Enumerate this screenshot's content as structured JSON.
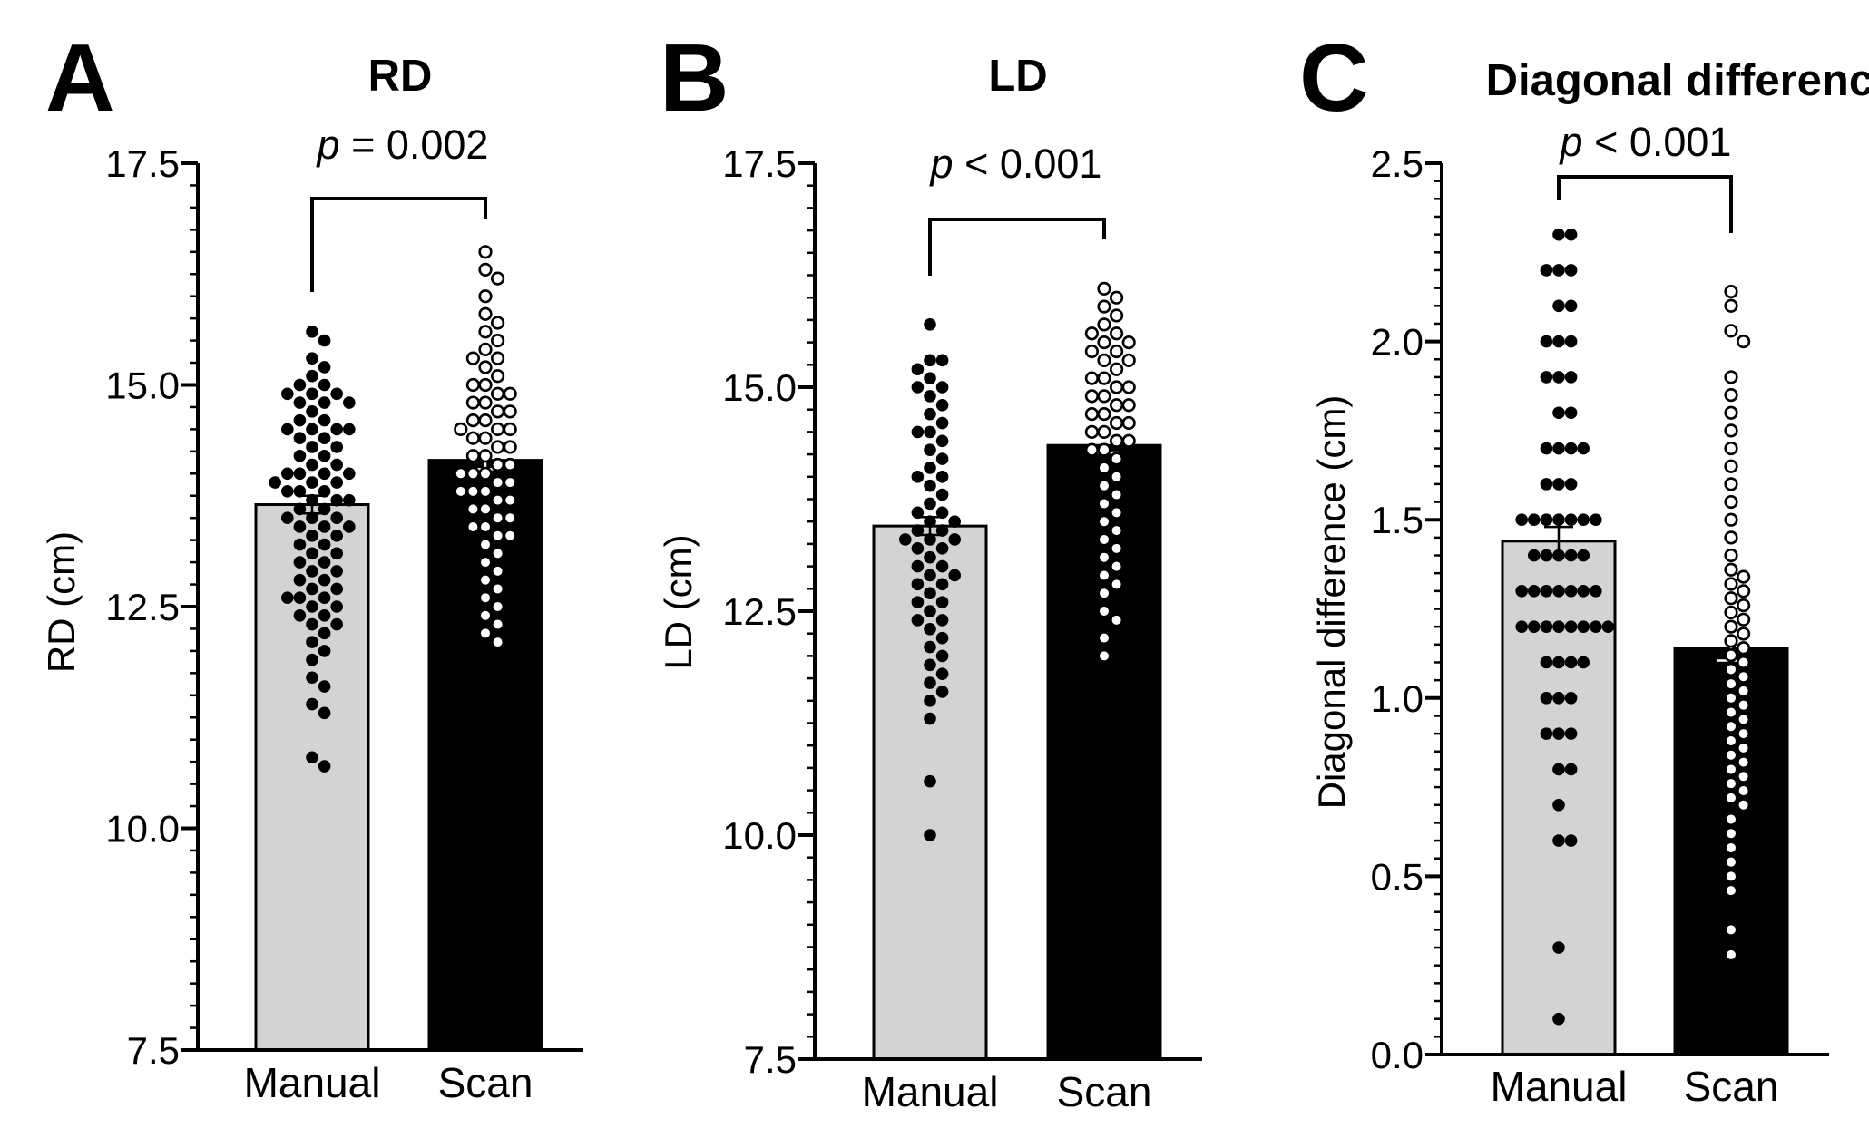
{
  "chart_data": [
    {
      "type": "bar",
      "panel": "A",
      "title": "RD",
      "ylabel": "RD (cm)",
      "xlabel": "",
      "categories": [
        "Manual",
        "Scan"
      ],
      "values": [
        13.65,
        14.15
      ],
      "sem": [
        0.1,
        0.1
      ],
      "ylim": [
        7.5,
        17.5
      ],
      "yticks": [
        "7.5",
        "10.0",
        "12.5",
        "15.0",
        "17.5"
      ],
      "pvalue": {
        "italic": "p",
        "text": " = 0.002"
      },
      "bar_colors": [
        "#d3d3d3",
        "#000000"
      ],
      "points": [
        [
          15.6,
          15.5,
          15.3,
          15.2,
          15.1,
          15.0,
          15.0,
          14.9,
          14.9,
          14.9,
          14.8,
          14.8,
          14.8,
          14.7,
          14.6,
          14.6,
          14.5,
          14.5,
          14.5,
          14.5,
          14.4,
          14.4,
          14.3,
          14.3,
          14.2,
          14.2,
          14.1,
          14.1,
          14.0,
          14.0,
          14.0,
          14.0,
          13.9,
          13.9,
          13.9,
          13.8,
          13.8,
          13.8,
          13.7,
          13.7,
          13.7,
          13.6,
          13.6,
          13.5,
          13.5,
          13.5,
          13.4,
          13.4,
          13.4,
          13.3,
          13.3,
          13.2,
          13.2,
          13.1,
          13.1,
          13.0,
          13.0,
          12.9,
          12.9,
          12.8,
          12.8,
          12.7,
          12.7,
          12.6,
          12.6,
          12.6,
          12.5,
          12.5,
          12.4,
          12.4,
          12.3,
          12.3,
          12.2,
          12.1,
          12.0,
          11.9,
          11.7,
          11.6,
          11.4,
          11.3,
          10.8,
          10.7
        ],
        [
          16.5,
          16.3,
          16.2,
          16.0,
          15.8,
          15.7,
          15.6,
          15.5,
          15.4,
          15.3,
          15.3,
          15.2,
          15.1,
          15.0,
          15.0,
          14.9,
          14.9,
          14.8,
          14.8,
          14.7,
          14.7,
          14.6,
          14.6,
          14.5,
          14.5,
          14.5,
          14.4,
          14.4,
          14.3,
          14.3,
          14.2,
          14.2,
          14.1,
          14.1,
          14.0,
          14.0,
          14.0,
          13.9,
          13.9,
          13.8,
          13.8,
          13.8,
          13.7,
          13.7,
          13.6,
          13.6,
          13.5,
          13.5,
          13.4,
          13.4,
          13.3,
          13.3,
          13.2,
          13.1,
          13.0,
          12.9,
          12.8,
          12.7,
          12.6,
          12.5,
          12.4,
          12.3,
          12.2,
          12.1
        ]
      ]
    },
    {
      "type": "bar",
      "panel": "B",
      "title": "LD",
      "ylabel": "LD (cm)",
      "xlabel": "",
      "categories": [
        "Manual",
        "Scan"
      ],
      "values": [
        13.45,
        14.35
      ],
      "sem": [
        0.1,
        0.08
      ],
      "ylim": [
        7.5,
        17.5
      ],
      "yticks": [
        "7.5",
        "10.0",
        "12.5",
        "15.0",
        "17.5"
      ],
      "pvalue": {
        "italic": "p",
        "text": " < 0.001"
      },
      "bar_colors": [
        "#d3d3d3",
        "#000000"
      ],
      "points": [
        [
          15.7,
          15.3,
          15.3,
          15.2,
          15.1,
          15.0,
          15.0,
          14.9,
          14.8,
          14.7,
          14.6,
          14.5,
          14.5,
          14.4,
          14.3,
          14.2,
          14.1,
          14.0,
          14.0,
          13.9,
          13.8,
          13.7,
          13.6,
          13.6,
          13.5,
          13.5,
          13.4,
          13.4,
          13.3,
          13.3,
          13.3,
          13.2,
          13.2,
          13.1,
          13.0,
          13.0,
          12.9,
          12.9,
          12.8,
          12.8,
          12.7,
          12.6,
          12.6,
          12.5,
          12.4,
          12.4,
          12.3,
          12.2,
          12.1,
          12.0,
          11.9,
          11.8,
          11.7,
          11.6,
          11.5,
          11.3,
          10.6,
          10.0
        ],
        [
          16.1,
          16.0,
          15.9,
          15.8,
          15.7,
          15.6,
          15.6,
          15.5,
          15.5,
          15.4,
          15.4,
          15.3,
          15.3,
          15.2,
          15.1,
          15.1,
          15.0,
          15.0,
          14.9,
          14.9,
          14.8,
          14.8,
          14.7,
          14.7,
          14.6,
          14.6,
          14.5,
          14.5,
          14.4,
          14.4,
          14.3,
          14.3,
          14.2,
          14.1,
          14.0,
          13.9,
          13.8,
          13.7,
          13.6,
          13.5,
          13.4,
          13.3,
          13.2,
          13.1,
          13.0,
          12.9,
          12.8,
          12.7,
          12.5,
          12.4,
          12.2,
          12.0
        ]
      ]
    },
    {
      "type": "bar",
      "panel": "C",
      "title": "Diagonal difference",
      "ylabel": "Diagonal difference (cm)",
      "xlabel": "",
      "categories": [
        "Manual",
        "Scan"
      ],
      "values": [
        1.44,
        1.14
      ],
      "sem": [
        0.04,
        0.035
      ],
      "ylim": [
        0.0,
        2.5
      ],
      "yticks": [
        "0.0",
        "0.5",
        "1.0",
        "1.5",
        "2.0",
        "2.5"
      ],
      "pvalue": {
        "italic": "p",
        "text": " < 0.001"
      },
      "bar_colors": [
        "#d3d3d3",
        "#000000"
      ],
      "points": [
        [
          2.3,
          2.3,
          2.2,
          2.2,
          2.2,
          2.1,
          2.1,
          2.0,
          2.0,
          2.0,
          1.9,
          1.9,
          1.9,
          1.8,
          1.8,
          1.7,
          1.7,
          1.7,
          1.7,
          1.6,
          1.6,
          1.6,
          1.5,
          1.5,
          1.5,
          1.5,
          1.5,
          1.5,
          1.5,
          1.4,
          1.4,
          1.4,
          1.4,
          1.4,
          1.3,
          1.3,
          1.3,
          1.3,
          1.3,
          1.3,
          1.3,
          1.2,
          1.2,
          1.2,
          1.2,
          1.2,
          1.2,
          1.2,
          1.2,
          1.1,
          1.1,
          1.1,
          1.1,
          1.0,
          1.0,
          1.0,
          0.9,
          0.9,
          0.9,
          0.8,
          0.8,
          0.7,
          0.6,
          0.6,
          0.3,
          0.1
        ],
        [
          2.14,
          2.1,
          2.03,
          2.0,
          1.9,
          1.85,
          1.8,
          1.75,
          1.7,
          1.65,
          1.6,
          1.55,
          1.5,
          1.45,
          1.4,
          1.36,
          1.34,
          1.32,
          1.3,
          1.28,
          1.26,
          1.24,
          1.22,
          1.2,
          1.18,
          1.16,
          1.14,
          1.12,
          1.1,
          1.08,
          1.06,
          1.04,
          1.02,
          1.0,
          0.98,
          0.96,
          0.94,
          0.92,
          0.9,
          0.88,
          0.86,
          0.84,
          0.82,
          0.8,
          0.78,
          0.76,
          0.74,
          0.72,
          0.7,
          0.66,
          0.62,
          0.58,
          0.54,
          0.5,
          0.46,
          0.35,
          0.28
        ]
      ]
    }
  ]
}
